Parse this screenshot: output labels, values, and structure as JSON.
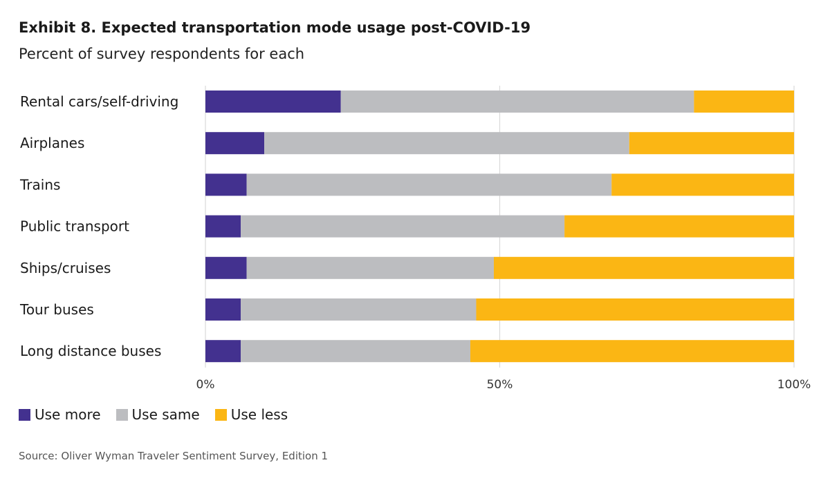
{
  "chart_data": {
    "type": "bar",
    "orientation": "horizontal",
    "stacked": true,
    "title": "Exhibit 8. Expected transportation mode usage post-COVID-19",
    "subtitle": "Percent of survey respondents for each",
    "source": "Source: Oliver Wyman Traveler Sentiment Survey, Edition 1",
    "categories": [
      "Rental cars/self-driving",
      "Airplanes",
      "Trains",
      "Public transport",
      "Ships/cruises",
      "Tour buses",
      "Long distance buses"
    ],
    "series": [
      {
        "name": "Use more",
        "color": "#43318f",
        "values": [
          23,
          10,
          7,
          6,
          7,
          6,
          6
        ]
      },
      {
        "name": "Use same",
        "color": "#bcbdc0",
        "values": [
          60,
          62,
          62,
          55,
          42,
          40,
          39
        ]
      },
      {
        "name": "Use less",
        "color": "#fbb614",
        "values": [
          17,
          28,
          31,
          39,
          51,
          54,
          55
        ]
      }
    ],
    "x_ticks": [
      "0%",
      "50%",
      "100%"
    ],
    "xlim": [
      0,
      100
    ],
    "grid": true,
    "legend_position": "bottom-left"
  }
}
